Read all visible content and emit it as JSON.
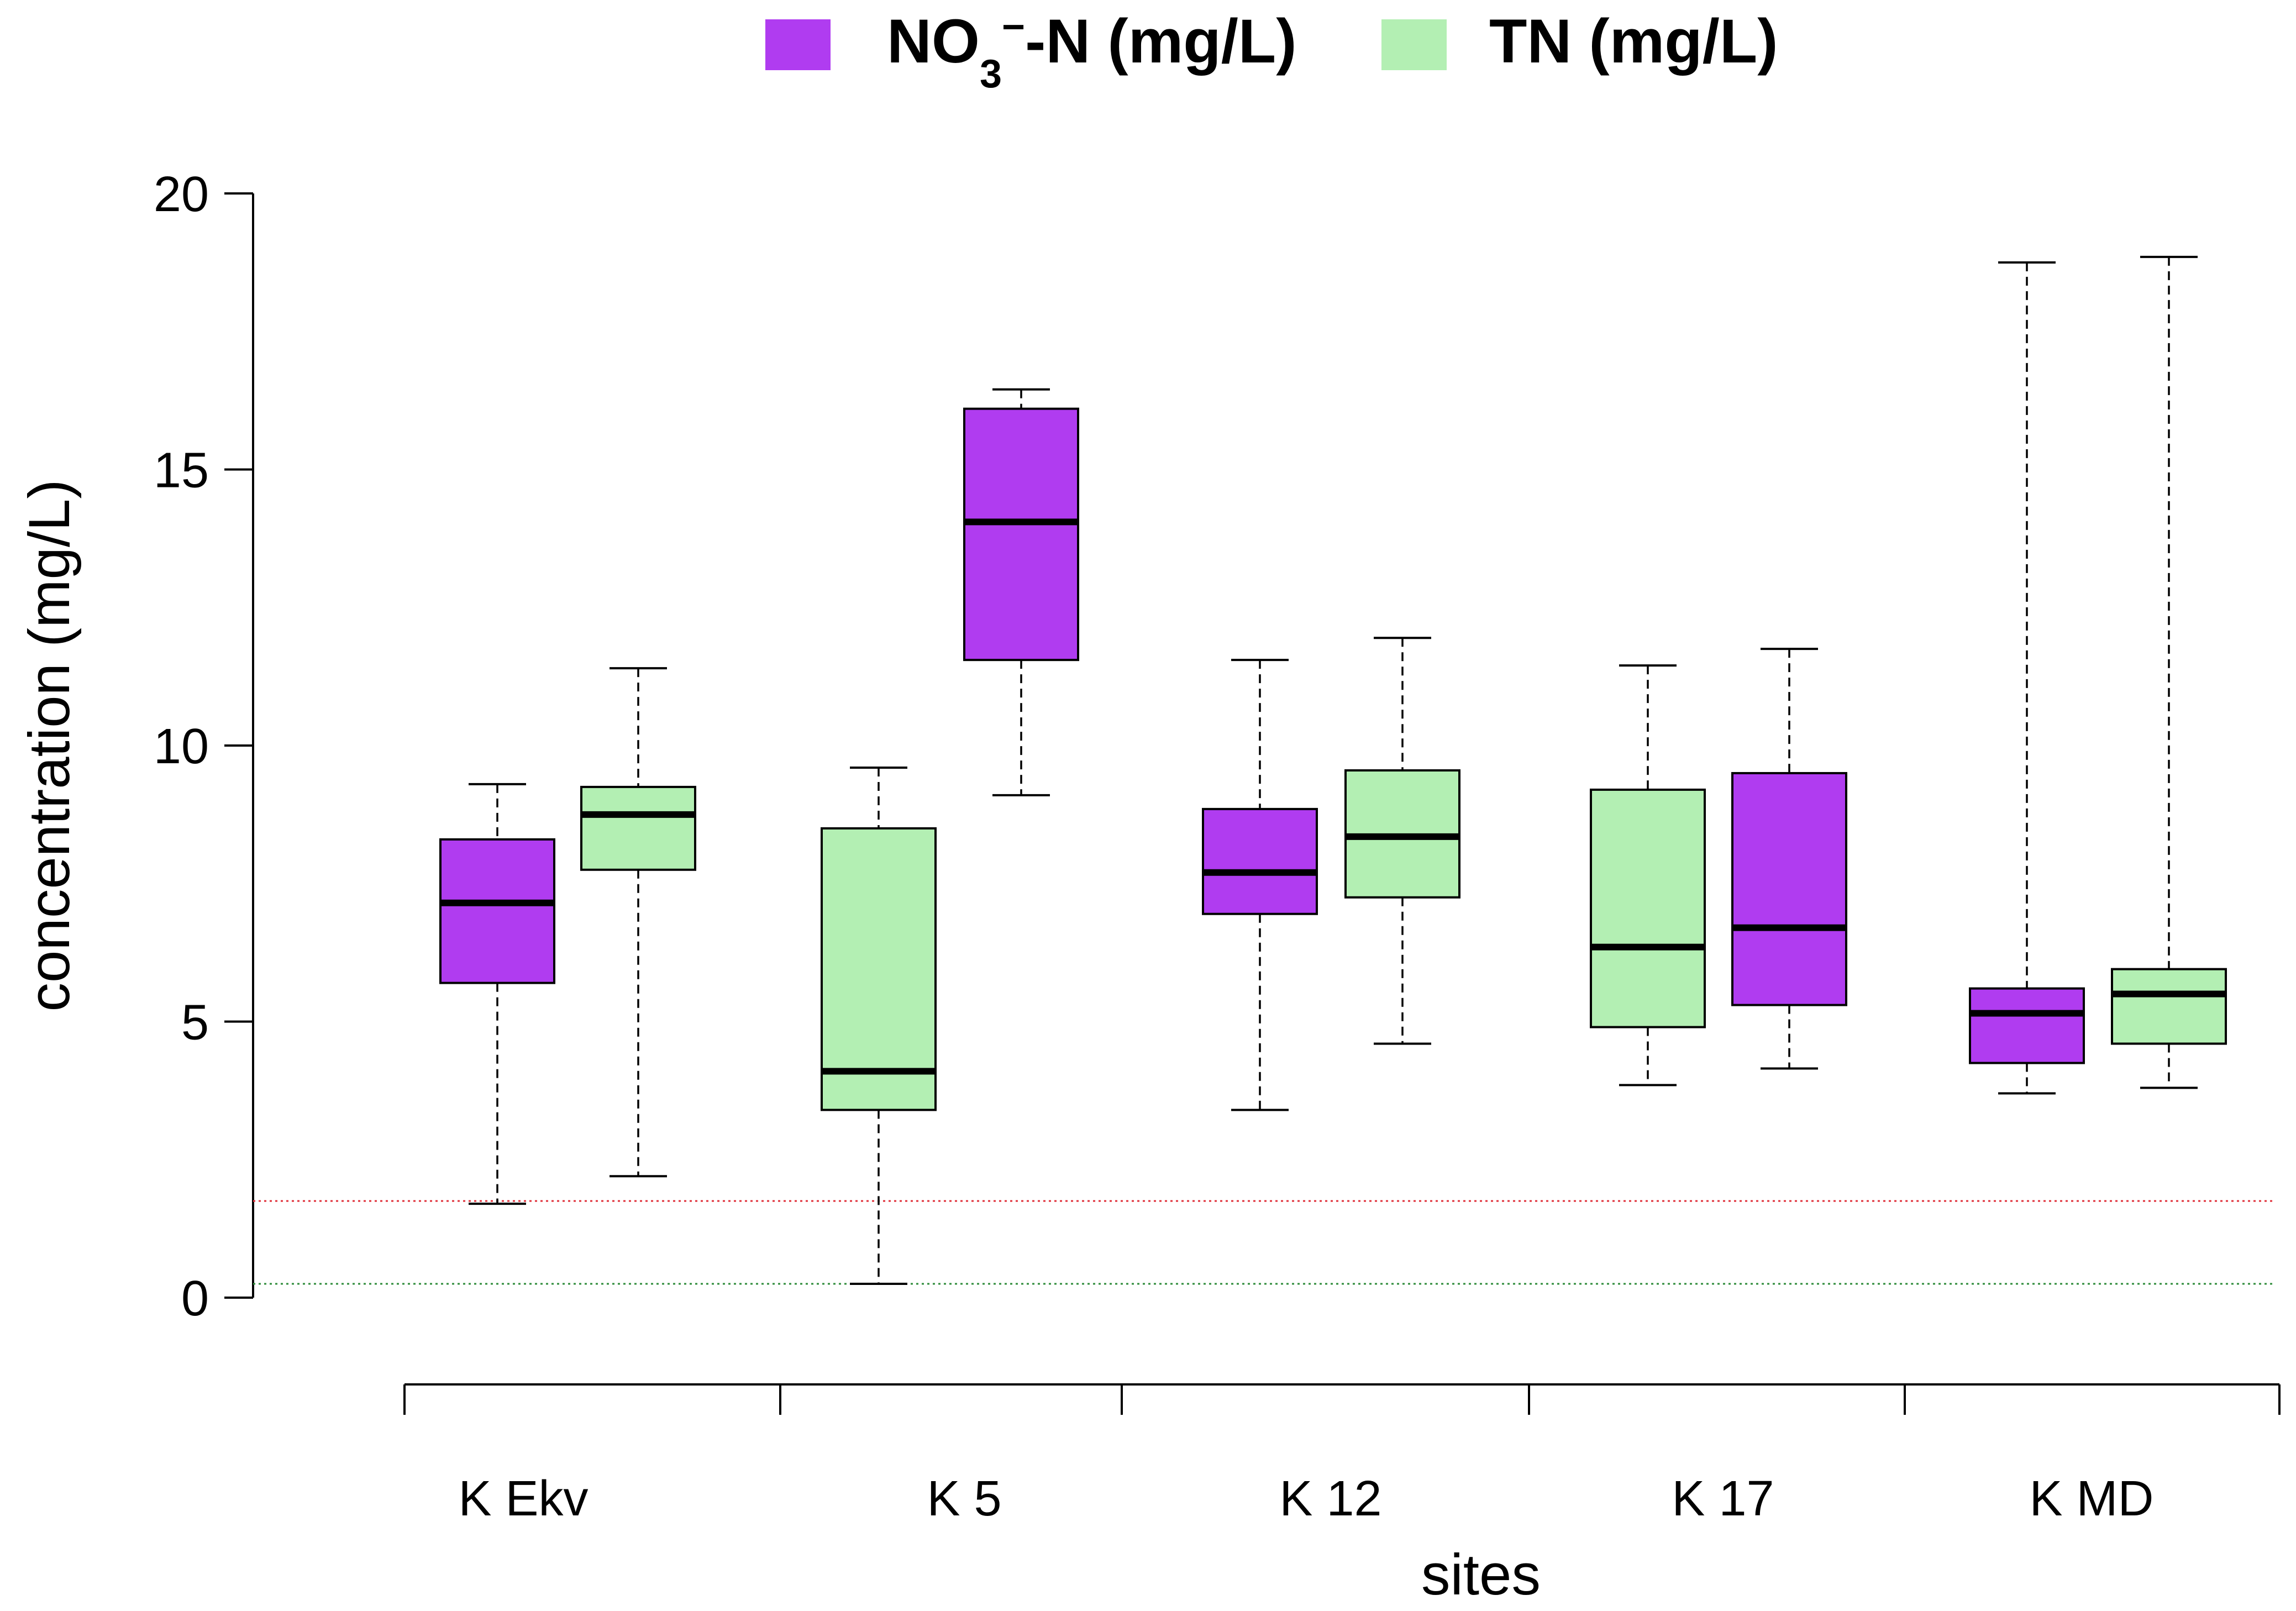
{
  "chart_data": {
    "type": "boxplot",
    "xlabel": "sites",
    "ylabel": "concentration (mg/L)",
    "ylim": [
      0,
      20
    ],
    "yticks": [
      0,
      5,
      10,
      15,
      20
    ],
    "categories": [
      "K Ekv",
      "K 5",
      "K 12",
      "K 17",
      "K MD"
    ],
    "legend": {
      "position": "top-center",
      "entries": [
        {
          "name": "NO₃⁻-N (mg/L)",
          "color": "#b03cf0"
        },
        {
          "name": "TN (mg/L)",
          "color": "#b3efb3"
        }
      ]
    },
    "colors": {
      "nitrate": "#b03cf0",
      "tn": "#b3efb3",
      "ref_red": "#e0303a",
      "ref_green": "#2e8b3a"
    },
    "reference_lines": [
      {
        "value": 1.75,
        "color": "#e0303a",
        "style": "dotted"
      },
      {
        "value": 0.25,
        "color": "#2e8b3a",
        "style": "dotted"
      }
    ],
    "boxes": [
      {
        "site": "K Ekv",
        "series": "NO3-N",
        "color": "#b03cf0",
        "min": 1.7,
        "q1": 5.7,
        "median": 7.15,
        "q3": 8.3,
        "max": 9.3
      },
      {
        "site": "K Ekv",
        "series": "TN",
        "color": "#b3efb3",
        "min": 2.2,
        "q1": 7.75,
        "median": 8.75,
        "q3": 9.25,
        "max": 11.4
      },
      {
        "site": "K 5",
        "series": "TN",
        "color": "#b3efb3",
        "min": 0.25,
        "q1": 3.4,
        "median": 4.1,
        "q3": 8.5,
        "max": 9.6
      },
      {
        "site": "K 5",
        "series": "NO3-N",
        "color": "#b03cf0",
        "min": 9.1,
        "q1": 11.55,
        "median": 14.05,
        "q3": 16.1,
        "max": 16.45
      },
      {
        "site": "K 12",
        "series": "NO3-N",
        "color": "#b03cf0",
        "min": 3.4,
        "q1": 6.95,
        "median": 7.7,
        "q3": 8.85,
        "max": 11.55
      },
      {
        "site": "K 12",
        "series": "TN",
        "color": "#b3efb3",
        "min": 4.6,
        "q1": 7.25,
        "median": 8.35,
        "q3": 9.55,
        "max": 11.95
      },
      {
        "site": "K 17",
        "series": "TN",
        "color": "#b3efb3",
        "min": 3.85,
        "q1": 4.9,
        "median": 6.35,
        "q3": 9.2,
        "max": 11.45
      },
      {
        "site": "K 17",
        "series": "NO3-N",
        "color": "#b03cf0",
        "min": 4.15,
        "q1": 5.3,
        "median": 6.7,
        "q3": 9.5,
        "max": 11.75
      },
      {
        "site": "K MD",
        "series": "NO3-N",
        "color": "#b03cf0",
        "min": 3.7,
        "q1": 4.25,
        "median": 5.15,
        "q3": 5.6,
        "max": 18.75
      },
      {
        "site": "K MD",
        "series": "TN",
        "color": "#b3efb3",
        "min": 3.8,
        "q1": 4.6,
        "median": 5.5,
        "q3": 5.95,
        "max": 18.85
      }
    ]
  }
}
